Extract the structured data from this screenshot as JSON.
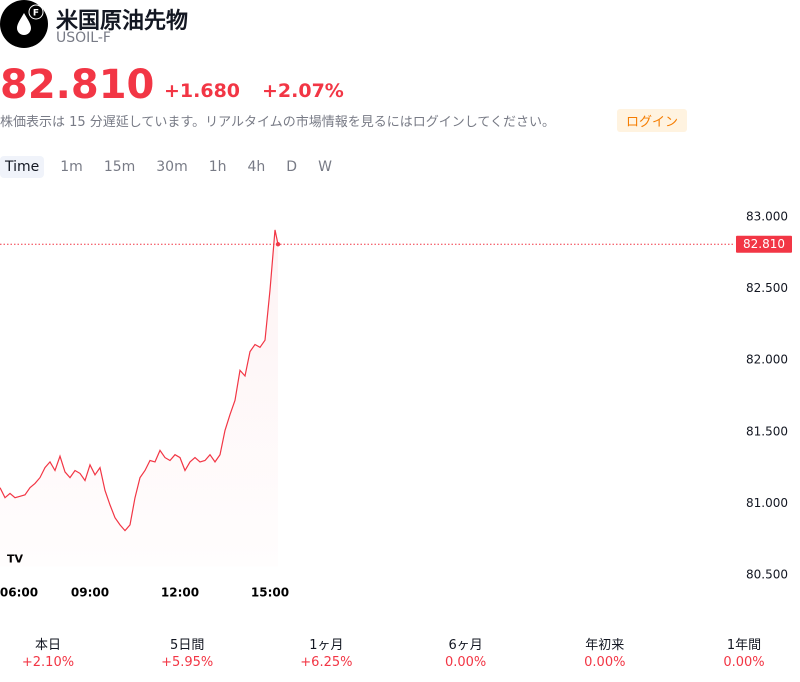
{
  "header": {
    "title": "米国原油先物",
    "symbol": "USOIL-F",
    "price": "82.810",
    "change": "+1.680",
    "change_pct": "+2.07%",
    "notice": "株価表示は 15 分遅延しています。リアルタイムの市場情報を見るにはログインしてください。",
    "login": "ログイン"
  },
  "tabs": [
    "Time",
    "1m",
    "15m",
    "30m",
    "1h",
    "4h",
    "D",
    "W"
  ],
  "active_tab": 0,
  "chart_data": {
    "type": "line",
    "x": [
      "06:00",
      "06:10",
      "06:20",
      "06:30",
      "06:40",
      "06:50",
      "07:00",
      "07:10",
      "07:20",
      "07:30",
      "07:40",
      "07:50",
      "08:00",
      "08:10",
      "08:20",
      "08:30",
      "08:40",
      "08:50",
      "09:00",
      "09:10",
      "09:20",
      "09:30",
      "09:40",
      "09:50",
      "10:00",
      "10:10",
      "10:20",
      "10:30",
      "10:40",
      "10:50",
      "11:00",
      "11:10",
      "11:20",
      "11:30",
      "11:40",
      "11:50",
      "12:00",
      "12:10",
      "12:20",
      "12:30",
      "12:40",
      "12:50",
      "13:00",
      "13:10",
      "13:20",
      "13:30",
      "13:40",
      "13:50",
      "14:00",
      "14:10",
      "14:20",
      "14:30",
      "14:40",
      "14:50",
      "15:00",
      "15:10",
      "15:16"
    ],
    "series": [
      {
        "name": "USOIL-F",
        "color": "#f23645",
        "values": [
          81.11,
          81.04,
          81.07,
          81.04,
          81.05,
          81.06,
          81.11,
          81.14,
          81.18,
          81.25,
          81.29,
          81.23,
          81.33,
          81.22,
          81.18,
          81.23,
          81.21,
          81.16,
          81.27,
          81.2,
          81.25,
          81.09,
          80.99,
          80.9,
          80.85,
          80.81,
          80.85,
          81.04,
          81.18,
          81.23,
          81.3,
          81.29,
          81.37,
          81.32,
          81.3,
          81.34,
          81.32,
          81.23,
          81.29,
          81.32,
          81.29,
          81.3,
          81.34,
          81.29,
          81.34,
          81.51,
          81.62,
          81.72,
          81.93,
          81.89,
          82.06,
          82.11,
          82.09,
          82.14,
          82.49,
          82.91,
          82.81
        ]
      }
    ],
    "last": {
      "value": 82.81,
      "label": "82.810"
    },
    "ylim": [
      80.35,
      83.2
    ],
    "yticks": [
      {
        "value": 80.5,
        "label": "80.500"
      },
      {
        "value": 81,
        "label": "81.000"
      },
      {
        "value": 81.5,
        "label": "81.500"
      },
      {
        "value": 82,
        "label": "82.000"
      },
      {
        "value": 82.5,
        "label": "82.500"
      },
      {
        "value": 83,
        "label": "83.000"
      }
    ],
    "xticks": [
      "06:00",
      "09:00",
      "12:00",
      "15:00"
    ]
  },
  "performance": [
    {
      "label": "本日",
      "value": "+2.10%"
    },
    {
      "label": "5日間",
      "value": "+5.95%"
    },
    {
      "label": "1ヶ月",
      "value": "+6.25%"
    },
    {
      "label": "6ヶ月",
      "value": "0.00%"
    },
    {
      "label": "年初来",
      "value": "0.00%"
    },
    {
      "label": "1年間",
      "value": "0.00%"
    }
  ]
}
